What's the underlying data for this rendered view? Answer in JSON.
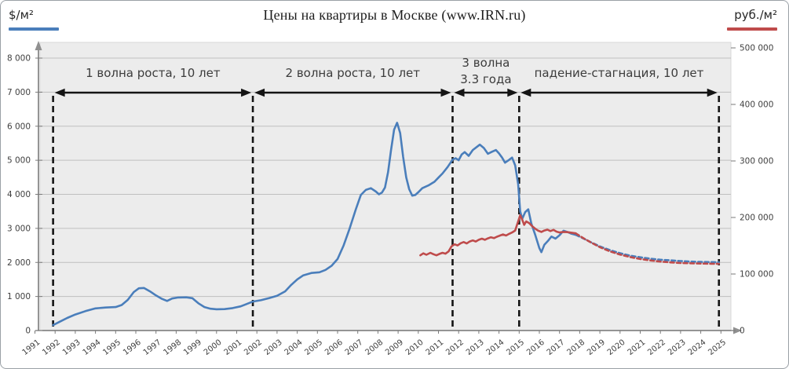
{
  "title": "Цены на квартиры в Москве (www.IRN.ru)",
  "legend": {
    "left_unit": "$/м²",
    "right_unit": "руб./м²"
  },
  "chart_data": {
    "type": "line",
    "title": "Цены на квартиры в Москве (www.IRN.ru)",
    "grid": "horizontal",
    "x_axis": {
      "min": 1991,
      "max": 2025,
      "tick_labels": [
        "1991",
        "1992",
        "1993",
        "1994",
        "1995",
        "1996",
        "1997",
        "1998",
        "1999",
        "2000",
        "2001",
        "2002",
        "2003",
        "2004",
        "2005",
        "2006",
        "2007",
        "2008",
        "2009",
        "2010",
        "2011",
        "2012",
        "2013",
        "2014",
        "2015",
        "2016",
        "2017",
        "2018",
        "2019",
        "2020",
        "2021",
        "2022",
        "2023",
        "2024",
        "2025"
      ]
    },
    "y_left": {
      "unit": "$/м²",
      "min": 0,
      "max": 8000,
      "color": "#4a7ebb",
      "tick_labels": [
        "0",
        "1 000",
        "2 000",
        "3 000",
        "4 000",
        "5 000",
        "6 000",
        "7 000",
        "8 000"
      ]
    },
    "y_right": {
      "unit": "руб./м²",
      "min": 0,
      "max": 500000,
      "color": "#bf4b4b",
      "tick_labels": [
        "0",
        "100 000",
        "200 000",
        "300 000",
        "400 000",
        "500 000"
      ]
    },
    "phases": [
      {
        "label": "1 волна роста, 10 лет",
        "from": 1991.9,
        "to": 2001.8
      },
      {
        "label": "2 волна роста, 10 лет",
        "from": 2001.8,
        "to": 2011.7
      },
      {
        "label": "3 волна",
        "label2": "3.3 года",
        "from": 2011.7,
        "to": 2015.0
      },
      {
        "label": "падение-стагнация, 10 лет",
        "from": 2015.0,
        "to": 2024.9
      }
    ],
    "series": [
      {
        "name": "$/м²",
        "axis": "left",
        "color": "#4a7ebb",
        "solid": [
          [
            1991.9,
            160
          ],
          [
            1992.2,
            250
          ],
          [
            1992.6,
            370
          ],
          [
            1993,
            470
          ],
          [
            1993.5,
            570
          ],
          [
            1994,
            650
          ],
          [
            1994.5,
            675
          ],
          [
            1995,
            690
          ],
          [
            1995.3,
            750
          ],
          [
            1995.6,
            900
          ],
          [
            1995.9,
            1130
          ],
          [
            1996.15,
            1240
          ],
          [
            1996.4,
            1250
          ],
          [
            1996.7,
            1150
          ],
          [
            1997,
            1030
          ],
          [
            1997.3,
            930
          ],
          [
            1997.55,
            870
          ],
          [
            1997.8,
            940
          ],
          [
            1998.1,
            970
          ],
          [
            1998.5,
            975
          ],
          [
            1998.8,
            950
          ],
          [
            1999.1,
            800
          ],
          [
            1999.4,
            690
          ],
          [
            1999.7,
            640
          ],
          [
            2000,
            625
          ],
          [
            2000.4,
            630
          ],
          [
            2000.8,
            660
          ],
          [
            2001.2,
            710
          ],
          [
            2001.5,
            780
          ],
          [
            2001.8,
            850
          ],
          [
            2002.2,
            890
          ],
          [
            2002.6,
            950
          ],
          [
            2003,
            1020
          ],
          [
            2003.4,
            1150
          ],
          [
            2003.7,
            1340
          ],
          [
            2004,
            1500
          ],
          [
            2004.3,
            1620
          ],
          [
            2004.7,
            1690
          ],
          [
            2005.1,
            1710
          ],
          [
            2005.4,
            1780
          ],
          [
            2005.7,
            1900
          ],
          [
            2006,
            2100
          ],
          [
            2006.3,
            2500
          ],
          [
            2006.6,
            3000
          ],
          [
            2006.9,
            3550
          ],
          [
            2007.15,
            3980
          ],
          [
            2007.4,
            4130
          ],
          [
            2007.65,
            4180
          ],
          [
            2007.9,
            4080
          ],
          [
            2008.05,
            4000
          ],
          [
            2008.2,
            4050
          ],
          [
            2008.35,
            4200
          ],
          [
            2008.5,
            4650
          ],
          [
            2008.65,
            5300
          ],
          [
            2008.8,
            5900
          ],
          [
            2008.95,
            6100
          ],
          [
            2009.1,
            5800
          ],
          [
            2009.25,
            5100
          ],
          [
            2009.4,
            4500
          ],
          [
            2009.55,
            4150
          ],
          [
            2009.7,
            3960
          ],
          [
            2009.85,
            3980
          ],
          [
            2010,
            4060
          ],
          [
            2010.2,
            4180
          ],
          [
            2010.5,
            4260
          ],
          [
            2010.8,
            4370
          ],
          [
            2011,
            4490
          ],
          [
            2011.2,
            4610
          ],
          [
            2011.45,
            4800
          ],
          [
            2011.7,
            5020
          ],
          [
            2011.85,
            5060
          ],
          [
            2012,
            5000
          ],
          [
            2012.15,
            5170
          ],
          [
            2012.3,
            5240
          ],
          [
            2012.5,
            5130
          ],
          [
            2012.7,
            5300
          ],
          [
            2012.9,
            5390
          ],
          [
            2013.05,
            5460
          ],
          [
            2013.25,
            5360
          ],
          [
            2013.45,
            5190
          ],
          [
            2013.65,
            5250
          ],
          [
            2013.85,
            5300
          ],
          [
            2014,
            5200
          ],
          [
            2014.15,
            5080
          ],
          [
            2014.3,
            4930
          ],
          [
            2014.5,
            5010
          ],
          [
            2014.65,
            5080
          ],
          [
            2014.8,
            4850
          ],
          [
            2014.95,
            4300
          ],
          [
            2015.05,
            3500
          ],
          [
            2015.15,
            3280
          ],
          [
            2015.3,
            3480
          ],
          [
            2015.45,
            3560
          ],
          [
            2015.6,
            3150
          ],
          [
            2015.8,
            2800
          ],
          [
            2016,
            2420
          ],
          [
            2016.1,
            2300
          ],
          [
            2016.25,
            2520
          ],
          [
            2016.45,
            2650
          ],
          [
            2016.6,
            2760
          ],
          [
            2016.8,
            2700
          ],
          [
            2017,
            2800
          ],
          [
            2017.2,
            2930
          ],
          [
            2017.4,
            2890
          ],
          [
            2017.6,
            2840
          ],
          [
            2017.8,
            2810
          ]
        ],
        "dashed": [
          [
            2017.8,
            2810
          ],
          [
            2018.2,
            2700
          ],
          [
            2018.6,
            2580
          ],
          [
            2019,
            2470
          ],
          [
            2019.5,
            2360
          ],
          [
            2020,
            2270
          ],
          [
            2020.5,
            2200
          ],
          [
            2021,
            2150
          ],
          [
            2021.5,
            2110
          ],
          [
            2022,
            2080
          ],
          [
            2022.5,
            2060
          ],
          [
            2023,
            2040
          ],
          [
            2023.5,
            2025
          ],
          [
            2024,
            2015
          ],
          [
            2024.5,
            2010
          ],
          [
            2024.9,
            2005
          ]
        ]
      },
      {
        "name": "руб./м²",
        "axis": "right",
        "color": "#bf4b4b",
        "solid": [
          [
            2010.1,
            133000
          ],
          [
            2010.25,
            136500
          ],
          [
            2010.4,
            134000
          ],
          [
            2010.6,
            137500
          ],
          [
            2010.75,
            135000
          ],
          [
            2010.9,
            133000
          ],
          [
            2011.05,
            135500
          ],
          [
            2011.2,
            137500
          ],
          [
            2011.35,
            136000
          ],
          [
            2011.5,
            140000
          ],
          [
            2011.65,
            149000
          ],
          [
            2011.8,
            152500
          ],
          [
            2011.95,
            150500
          ],
          [
            2012.1,
            154500
          ],
          [
            2012.25,
            156500
          ],
          [
            2012.4,
            154000
          ],
          [
            2012.55,
            157500
          ],
          [
            2012.7,
            159500
          ],
          [
            2012.85,
            157500
          ],
          [
            2013,
            160500
          ],
          [
            2013.15,
            162500
          ],
          [
            2013.3,
            160500
          ],
          [
            2013.45,
            163000
          ],
          [
            2013.6,
            165000
          ],
          [
            2013.75,
            163500
          ],
          [
            2013.9,
            166000
          ],
          [
            2014.05,
            168000
          ],
          [
            2014.2,
            170000
          ],
          [
            2014.35,
            168000
          ],
          [
            2014.5,
            171000
          ],
          [
            2014.65,
            173500
          ],
          [
            2014.8,
            177000
          ],
          [
            2014.95,
            193000
          ],
          [
            2015.05,
            204000
          ],
          [
            2015.15,
            196000
          ],
          [
            2015.25,
            187000
          ],
          [
            2015.35,
            193000
          ],
          [
            2015.5,
            190000
          ],
          [
            2015.65,
            184500
          ],
          [
            2015.8,
            180000
          ],
          [
            2015.95,
            176500
          ],
          [
            2016.1,
            174500
          ],
          [
            2016.25,
            177000
          ],
          [
            2016.4,
            178500
          ],
          [
            2016.55,
            176000
          ],
          [
            2016.7,
            178000
          ],
          [
            2016.85,
            175000
          ],
          [
            2017,
            173500
          ],
          [
            2017.2,
            174500
          ],
          [
            2017.4,
            174000
          ],
          [
            2017.6,
            173000
          ],
          [
            2017.8,
            172000
          ]
        ],
        "dashed": [
          [
            2017.8,
            172000
          ],
          [
            2018.2,
            163000
          ],
          [
            2018.6,
            155000
          ],
          [
            2019,
            147500
          ],
          [
            2019.5,
            140000
          ],
          [
            2020,
            134500
          ],
          [
            2020.5,
            130000
          ],
          [
            2021,
            126500
          ],
          [
            2021.5,
            124000
          ],
          [
            2022,
            122000
          ],
          [
            2022.5,
            120500
          ],
          [
            2023,
            119500
          ],
          [
            2023.5,
            119000
          ],
          [
            2024,
            118500
          ],
          [
            2024.5,
            118200
          ],
          [
            2024.9,
            118000
          ]
        ]
      }
    ]
  }
}
